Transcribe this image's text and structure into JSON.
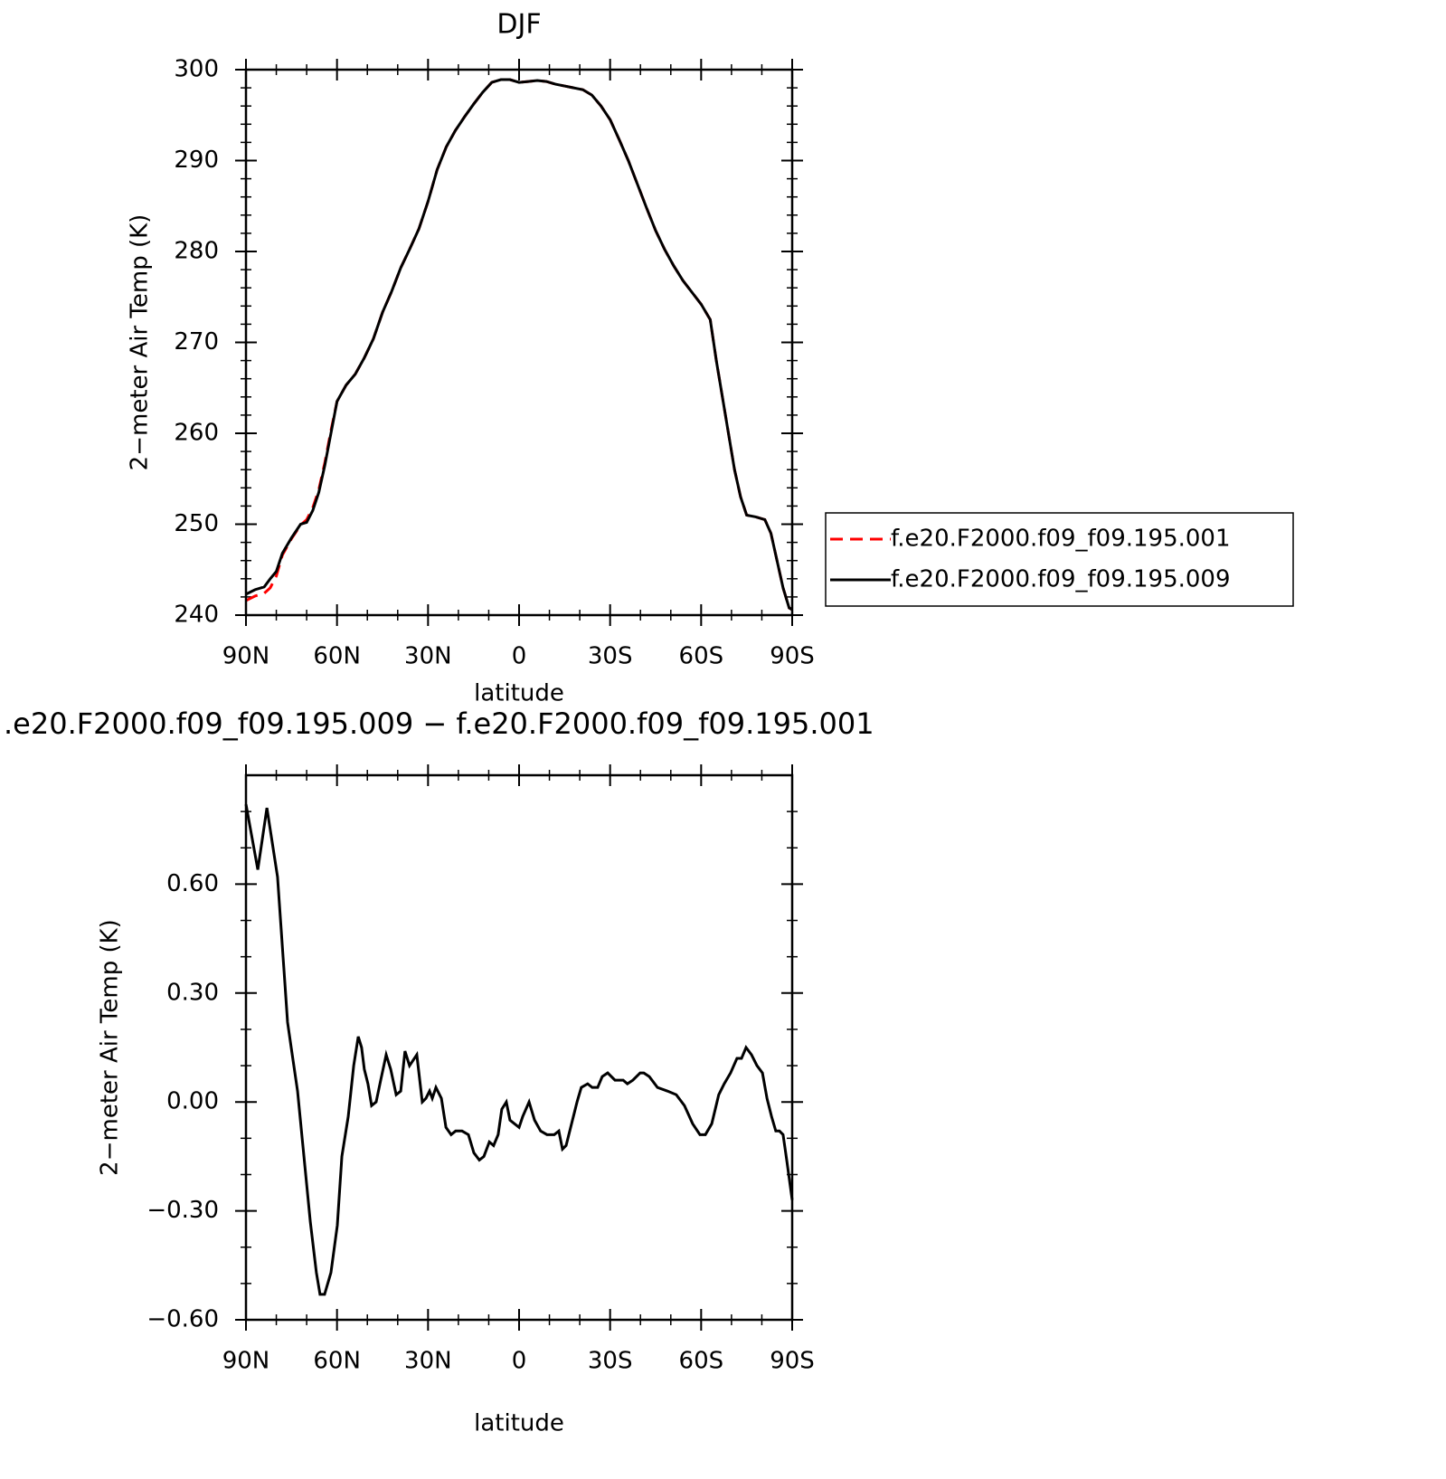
{
  "chart_data": [
    {
      "type": "line",
      "title": "DJF",
      "xlabel": "latitude",
      "ylabel": "2−meter Air Temp (K)",
      "xlim": [
        90,
        -90
      ],
      "xticks": [
        {
          "value": 90,
          "label": "90N"
        },
        {
          "value": 60,
          "label": "60N"
        },
        {
          "value": 30,
          "label": "30N"
        },
        0,
        {
          "value": -30,
          "label": "30S"
        },
        {
          "value": -60,
          "label": "60S"
        },
        {
          "value": -90,
          "label": "90S"
        }
      ],
      "xminorticks": [
        80,
        70,
        50,
        40,
        20,
        10,
        -10,
        -20,
        -40,
        -50,
        -70,
        -80
      ],
      "ylim": [
        240,
        300
      ],
      "yticks": [
        240,
        250,
        260,
        270,
        280,
        290,
        300
      ],
      "yminorticks": [
        242,
        244,
        246,
        248,
        252,
        254,
        256,
        258,
        262,
        264,
        266,
        268,
        272,
        274,
        276,
        278,
        282,
        284,
        286,
        288,
        292,
        294,
        296,
        298
      ],
      "legend": "right",
      "x": [
        90,
        87,
        84,
        82,
        80,
        78,
        75,
        72,
        70,
        68,
        66,
        64,
        62,
        60,
        57,
        54,
        51,
        48,
        45,
        42,
        39,
        36,
        33,
        30,
        27,
        24,
        21,
        18,
        15,
        12,
        9,
        6,
        3,
        0,
        -3,
        -6,
        -9,
        -12,
        -15,
        -18,
        -21,
        -24,
        -27,
        -30,
        -33,
        -36,
        -39,
        -42,
        -45,
        -48,
        -51,
        -54,
        -57,
        -60,
        -63,
        -65,
        -67,
        -69,
        -71,
        -73,
        -75,
        -78,
        -81,
        -83,
        -85,
        -87,
        -89,
        -90
      ],
      "series": [
        {
          "name": "f.e20.F2000.f09_f09.195.001",
          "color": "#ff0000",
          "dash": "dashed",
          "values": [
            241.6,
            242.1,
            242.4,
            243.0,
            244.3,
            246.6,
            248.4,
            249.9,
            250.5,
            251.8,
            253.8,
            256.8,
            260.3,
            263.5,
            265.3,
            266.5,
            268.3,
            270.4,
            273.3,
            275.6,
            278.2,
            280.3,
            282.5,
            285.5,
            289,
            291.5,
            293.3,
            294.8,
            296.2,
            297.5,
            298.6,
            298.9,
            298.9,
            298.6,
            298.7,
            298.8,
            298.7,
            298.4,
            298.2,
            298,
            297.8,
            297.2,
            296,
            294.5,
            292.3,
            290,
            287.4,
            284.8,
            282.3,
            280.2,
            278.4,
            276.8,
            275.5,
            274.2,
            272.5,
            268,
            264,
            260,
            256,
            253,
            251,
            250.8,
            250.5,
            249,
            246,
            243,
            240.8,
            240.6
          ]
        },
        {
          "name": "f.e20.F2000.f09_f09.195.009",
          "color": "#000000",
          "dash": "solid",
          "values": [
            242.3,
            242.8,
            243.1,
            244,
            244.8,
            246.8,
            248.5,
            250,
            250.2,
            251.5,
            253.5,
            256.5,
            260,
            263.5,
            265.3,
            266.5,
            268.3,
            270.4,
            273.3,
            275.6,
            278.2,
            280.3,
            282.5,
            285.5,
            289,
            291.5,
            293.3,
            294.8,
            296.2,
            297.5,
            298.6,
            298.9,
            298.9,
            298.6,
            298.7,
            298.8,
            298.7,
            298.4,
            298.2,
            298,
            297.8,
            297.2,
            296,
            294.5,
            292.3,
            290,
            287.4,
            284.8,
            282.3,
            280.2,
            278.4,
            276.8,
            275.5,
            274.2,
            272.5,
            268,
            264,
            260,
            256,
            253,
            251,
            250.8,
            250.5,
            249,
            246,
            243,
            240.8,
            240.6
          ]
        }
      ]
    },
    {
      "type": "line",
      "title": ".e20.F2000.f09_f09.195.009 − f.e20.F2000.f09_f09.195.001",
      "xlabel": "latitude",
      "ylabel": "2−meter Air Temp (K)",
      "xlim": [
        90,
        -90
      ],
      "xticks": [
        {
          "value": 90,
          "label": "90N"
        },
        {
          "value": 60,
          "label": "60N"
        },
        {
          "value": 30,
          "label": "30N"
        },
        0,
        {
          "value": -30,
          "label": "30S"
        },
        {
          "value": -60,
          "label": "60S"
        },
        {
          "value": -90,
          "label": "90S"
        }
      ],
      "xminorticks": [
        80,
        70,
        50,
        40,
        20,
        10,
        -10,
        -20,
        -40,
        -50,
        -70,
        -80
      ],
      "ylim": [
        -0.6,
        0.9
      ],
      "yticks": [
        {
          "value": -0.6,
          "label": "−0.60"
        },
        {
          "value": -0.3,
          "label": "−0.30"
        },
        {
          "value": 0,
          "label": "0.00"
        },
        {
          "value": 0.3,
          "label": "0.30"
        },
        {
          "value": 0.6,
          "label": "0.60"
        }
      ],
      "yminorticks": [
        -0.5,
        -0.4,
        -0.2,
        -0.1,
        0.1,
        0.2,
        0.4,
        0.5,
        0.7,
        0.8
      ],
      "x": [
        90,
        86.1,
        83.1,
        79.6,
        77.2,
        76.3,
        75.1,
        73,
        70.9,
        68.8,
        66.8,
        65.6,
        64.1,
        62,
        59.9,
        58.4,
        56.3,
        54.5,
        53,
        51.9,
        51,
        49.8,
        48.6,
        47.1,
        45.6,
        43.8,
        42.3,
        40.5,
        39,
        37.6,
        36.1,
        33.7,
        31.9,
        30.7,
        29.5,
        28.6,
        27.4,
        25.6,
        24.1,
        22.4,
        20.9,
        18.8,
        16.7,
        14.9,
        13.1,
        11.6,
        9.8,
        8.4,
        6.9,
        5.7,
        4.2,
        3,
        1.5,
        0,
        -1.2,
        -3.3,
        -5.1,
        -7.1,
        -9.2,
        -11.6,
        -13.1,
        -14.3,
        -15.5,
        -17.6,
        -19.1,
        -20.5,
        -22.6,
        -24.1,
        -25.9,
        -27.4,
        -29.2,
        -31.6,
        -34.3,
        -35.7,
        -37.5,
        -39.9,
        -41.1,
        -42.9,
        -45.6,
        -48.9,
        -51.8,
        -54.5,
        -57.2,
        -59.6,
        -61.4,
        -63.5,
        -65.8,
        -67.6,
        -69.7,
        -71.8,
        -73.3,
        -74.8,
        -76.6,
        -78.4,
        -80.2,
        -81.7,
        -83.2,
        -84.6,
        -85.8,
        -87,
        -88.2,
        -90
      ],
      "series": [
        {
          "color": "#000000",
          "dash": "solid",
          "values": [
            0.82,
            0.64,
            0.81,
            0.62,
            0.33,
            0.22,
            0.15,
            0.03,
            -0.15,
            -0.33,
            -0.47,
            -0.53,
            -0.53,
            -0.47,
            -0.34,
            -0.15,
            -0.04,
            0.1,
            0.18,
            0.15,
            0.09,
            0.05,
            -0.01,
            0.0,
            0.06,
            0.13,
            0.09,
            0.02,
            0.03,
            0.14,
            0.1,
            0.13,
            0.0,
            0.01,
            0.03,
            0.01,
            0.04,
            0.01,
            -0.07,
            -0.09,
            -0.08,
            -0.08,
            -0.09,
            -0.14,
            -0.16,
            -0.15,
            -0.11,
            -0.12,
            -0.09,
            -0.02,
            0.0,
            -0.05,
            -0.06,
            -0.07,
            -0.04,
            0.0,
            -0.05,
            -0.08,
            -0.09,
            -0.09,
            -0.08,
            -0.13,
            -0.12,
            -0.05,
            0.0,
            0.04,
            0.05,
            0.04,
            0.04,
            0.07,
            0.08,
            0.06,
            0.06,
            0.05,
            0.06,
            0.08,
            0.08,
            0.07,
            0.04,
            0.03,
            0.02,
            -0.01,
            -0.06,
            -0.09,
            -0.09,
            -0.06,
            0.02,
            0.05,
            0.08,
            0.12,
            0.12,
            0.15,
            0.13,
            0.1,
            0.08,
            0.01,
            -0.04,
            -0.08,
            -0.08,
            -0.09,
            -0.16,
            -0.27
          ]
        }
      ]
    }
  ]
}
